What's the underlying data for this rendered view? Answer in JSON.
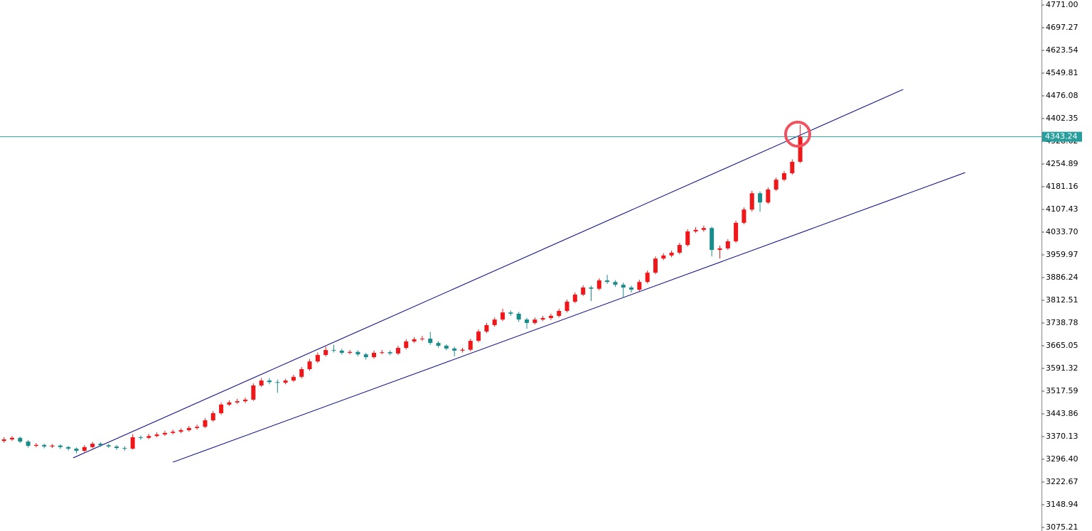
{
  "chart_data": {
    "type": "candlestick",
    "up_color": "#f0171b",
    "down_color": "#1a8c8c",
    "trendline_color": "#00008b",
    "price_line_color": "#2a9d9d",
    "xlim": [
      -0.5,
      129
    ],
    "ylim": [
      3075.21,
      4771.0
    ],
    "yticks": [
      {
        "value": 4771.0,
        "label": "4771.00"
      },
      {
        "value": 4697.27,
        "label": "4697.27"
      },
      {
        "value": 4623.54,
        "label": "4623.54"
      },
      {
        "value": 4549.81,
        "label": "4549.81"
      },
      {
        "value": 4476.08,
        "label": "4476.08"
      },
      {
        "value": 4402.35,
        "label": "4402.35"
      },
      {
        "value": 4328.62,
        "label": "4328.62"
      },
      {
        "value": 4254.89,
        "label": "4254.89"
      },
      {
        "value": 4181.16,
        "label": "4181.16"
      },
      {
        "value": 4107.43,
        "label": "4107.43"
      },
      {
        "value": 4033.7,
        "label": "4033.70"
      },
      {
        "value": 3959.97,
        "label": "3959.97"
      },
      {
        "value": 3886.24,
        "label": "3886.24"
      },
      {
        "value": 3812.51,
        "label": "3812.51"
      },
      {
        "value": 3738.78,
        "label": "3738.78"
      },
      {
        "value": 3665.05,
        "label": "3665.05"
      },
      {
        "value": 3591.32,
        "label": "3591.32"
      },
      {
        "value": 3517.59,
        "label": "3517.59"
      },
      {
        "value": 3443.86,
        "label": "3443.86"
      },
      {
        "value": 3370.13,
        "label": "3370.13"
      },
      {
        "value": 3296.4,
        "label": "3296.40"
      },
      {
        "value": 3222.67,
        "label": "3222.67"
      },
      {
        "value": 3148.94,
        "label": "3148.94"
      },
      {
        "value": 3075.21,
        "label": "3075.21"
      }
    ],
    "current_price": 4343.24,
    "trendlines": [
      {
        "x": [
          8.6,
          111.8
        ],
        "values": [
          3301,
          4497
        ]
      },
      {
        "x": [
          21.0,
          119.5
        ],
        "values": [
          3287,
          4227
        ]
      }
    ],
    "ohlc": [
      [
        3356,
        3368,
        3350,
        3361
      ],
      [
        3361,
        3372,
        3356,
        3366
      ],
      [
        3366,
        3370,
        3349,
        3354
      ],
      [
        3354,
        3359,
        3334,
        3340
      ],
      [
        3340,
        3349,
        3335,
        3343
      ],
      [
        3343,
        3347,
        3332,
        3338
      ],
      [
        3338,
        3346,
        3333,
        3341
      ],
      [
        3341,
        3345,
        3330,
        3336
      ],
      [
        3336,
        3340,
        3325,
        3331
      ],
      [
        3331,
        3335,
        3316,
        3324
      ],
      [
        3324,
        3342,
        3320,
        3336
      ],
      [
        3336,
        3353,
        3332,
        3347
      ],
      [
        3347,
        3352,
        3337,
        3342
      ],
      [
        3342,
        3347,
        3333,
        3338
      ],
      [
        3338,
        3343,
        3327,
        3333
      ],
      [
        3333,
        3339,
        3324,
        3331
      ],
      [
        3331,
        3378,
        3328,
        3368
      ],
      [
        3368,
        3374,
        3360,
        3366
      ],
      [
        3366,
        3379,
        3362,
        3372
      ],
      [
        3372,
        3384,
        3368,
        3377
      ],
      [
        3377,
        3389,
        3372,
        3382
      ],
      [
        3382,
        3393,
        3377,
        3386
      ],
      [
        3386,
        3397,
        3381,
        3391
      ],
      [
        3391,
        3405,
        3386,
        3398
      ],
      [
        3398,
        3409,
        3393,
        3402
      ],
      [
        3402,
        3430,
        3398,
        3423
      ],
      [
        3423,
        3453,
        3418,
        3446
      ],
      [
        3446,
        3481,
        3441,
        3474
      ],
      [
        3474,
        3488,
        3469,
        3481
      ],
      [
        3481,
        3493,
        3476,
        3485
      ],
      [
        3485,
        3497,
        3479,
        3490
      ],
      [
        3490,
        3543,
        3486,
        3536
      ],
      [
        3536,
        3560,
        3531,
        3552
      ],
      [
        3552,
        3560,
        3540,
        3547
      ],
      [
        3547,
        3555,
        3512,
        3545
      ],
      [
        3545,
        3558,
        3540,
        3552
      ],
      [
        3552,
        3571,
        3547,
        3564
      ],
      [
        3564,
        3596,
        3559,
        3589
      ],
      [
        3589,
        3622,
        3584,
        3614
      ],
      [
        3614,
        3643,
        3609,
        3635
      ],
      [
        3635,
        3662,
        3630,
        3651
      ],
      [
        3651,
        3668,
        3643,
        3649
      ],
      [
        3649,
        3655,
        3636,
        3642
      ],
      [
        3642,
        3651,
        3637,
        3645
      ],
      [
        3645,
        3650,
        3631,
        3637
      ],
      [
        3637,
        3642,
        3620,
        3628
      ],
      [
        3628,
        3649,
        3623,
        3642
      ],
      [
        3642,
        3651,
        3637,
        3644
      ],
      [
        3644,
        3650,
        3634,
        3640
      ],
      [
        3640,
        3665,
        3635,
        3658
      ],
      [
        3658,
        3686,
        3653,
        3679
      ],
      [
        3679,
        3693,
        3674,
        3686
      ],
      [
        3686,
        3697,
        3680,
        3688
      ],
      [
        3688,
        3710,
        3668,
        3674
      ],
      [
        3674,
        3680,
        3659,
        3665
      ],
      [
        3665,
        3670,
        3650,
        3656
      ],
      [
        3656,
        3662,
        3631,
        3649
      ],
      [
        3649,
        3658,
        3643,
        3652
      ],
      [
        3652,
        3688,
        3647,
        3681
      ],
      [
        3681,
        3718,
        3676,
        3711
      ],
      [
        3711,
        3739,
        3706,
        3732
      ],
      [
        3732,
        3757,
        3727,
        3750
      ],
      [
        3750,
        3785,
        3745,
        3773
      ],
      [
        3773,
        3779,
        3762,
        3769
      ],
      [
        3769,
        3775,
        3742,
        3750
      ],
      [
        3750,
        3756,
        3720,
        3739
      ],
      [
        3739,
        3757,
        3734,
        3750
      ],
      [
        3750,
        3762,
        3745,
        3755
      ],
      [
        3755,
        3769,
        3749,
        3762
      ],
      [
        3762,
        3785,
        3757,
        3778
      ],
      [
        3778,
        3815,
        3773,
        3808
      ],
      [
        3808,
        3838,
        3803,
        3831
      ],
      [
        3831,
        3861,
        3826,
        3854
      ],
      [
        3854,
        3860,
        3810,
        3850
      ],
      [
        3850,
        3884,
        3845,
        3877
      ],
      [
        3877,
        3895,
        3866,
        3872
      ],
      [
        3872,
        3878,
        3856,
        3863
      ],
      [
        3863,
        3870,
        3820,
        3854
      ],
      [
        3854,
        3860,
        3838,
        3847
      ],
      [
        3847,
        3879,
        3842,
        3872
      ],
      [
        3872,
        3909,
        3867,
        3902
      ],
      [
        3902,
        3955,
        3897,
        3948
      ],
      [
        3948,
        3965,
        3943,
        3958
      ],
      [
        3958,
        3974,
        3952,
        3967
      ],
      [
        3967,
        3999,
        3962,
        3992
      ],
      [
        3992,
        4043,
        3987,
        4036
      ],
      [
        4036,
        4050,
        4031,
        4041
      ],
      [
        4041,
        4055,
        4035,
        4047
      ],
      [
        4047,
        4052,
        3955,
        3976
      ],
      [
        3976,
        3990,
        3948,
        3981
      ],
      [
        3981,
        4011,
        3976,
        4004
      ],
      [
        4004,
        4071,
        3999,
        4064
      ],
      [
        4064,
        4114,
        4059,
        4107
      ],
      [
        4107,
        4168,
        4100,
        4160
      ],
      [
        4160,
        4166,
        4100,
        4130
      ],
      [
        4130,
        4179,
        4125,
        4172
      ],
      [
        4172,
        4211,
        4167,
        4204
      ],
      [
        4204,
        4232,
        4199,
        4225
      ],
      [
        4225,
        4270,
        4220,
        4262
      ],
      [
        4262,
        4382,
        4258,
        4343.24
      ]
    ]
  }
}
